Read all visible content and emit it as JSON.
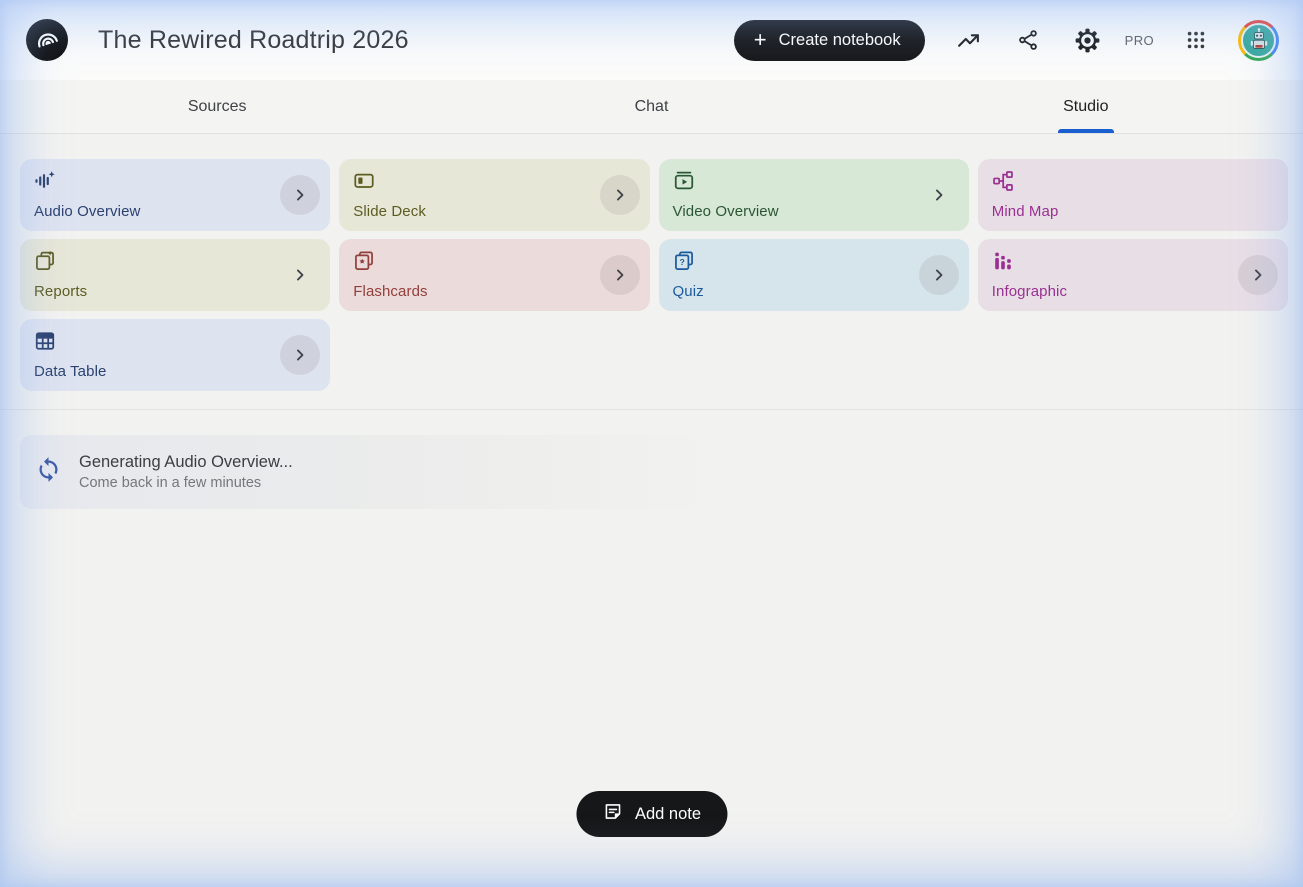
{
  "header": {
    "title": "The Rewired Roadtrip 2026",
    "create_notebook_label": "Create notebook",
    "plan_badge": "PRO",
    "icons": [
      "notebooklm-logo",
      "plus-icon",
      "trending-up-icon",
      "share-icon",
      "settings-gear-icon",
      "apps-grid-icon",
      "user-avatar-robot"
    ]
  },
  "tabs": [
    {
      "label": "Sources",
      "active": false
    },
    {
      "label": "Chat",
      "active": false
    },
    {
      "label": "Studio",
      "active": true
    }
  ],
  "studio": {
    "cards": [
      {
        "label": "Audio Overview",
        "icon": "audio-waveform-sparkle-icon",
        "bg": "#dee3f0",
        "fg": "#2b4170",
        "chevron": "circle"
      },
      {
        "label": "Slide Deck",
        "icon": "slide-deck-icon",
        "bg": "#e7e7d8",
        "fg": "#5d5c22",
        "chevron": "circle"
      },
      {
        "label": "Video Overview",
        "icon": "video-play-icon",
        "bg": "#d7e8d6",
        "fg": "#2b5633",
        "chevron": "plain"
      },
      {
        "label": "Mind Map",
        "icon": "mind-map-icon",
        "bg": "#e8dee6",
        "fg": "#9a3191",
        "chevron": "none"
      },
      {
        "label": "Reports",
        "icon": "report-sparkle-icon",
        "bg": "#e7e7d8",
        "fg": "#5d5c22",
        "chevron": "plain"
      },
      {
        "label": "Flashcards",
        "icon": "flashcards-star-icon",
        "bg": "#ecdbdb",
        "fg": "#92403c",
        "chevron": "circle"
      },
      {
        "label": "Quiz",
        "icon": "quiz-question-icon",
        "bg": "#d6e5ec",
        "fg": "#1c5a9e",
        "chevron": "circle"
      },
      {
        "label": "Infographic",
        "icon": "infographic-bars-icon",
        "bg": "#e8dee6",
        "fg": "#9a3191",
        "chevron": "circle"
      },
      {
        "label": "Data Table",
        "icon": "data-table-icon",
        "bg": "#dee3f0",
        "fg": "#2b4170",
        "chevron": "circle"
      }
    ],
    "generating": {
      "title": "Generating Audio Overview...",
      "subtitle": "Come back in a few minutes",
      "icon": "sync-spinner-icon"
    },
    "add_note_label": "Add note"
  },
  "colors": {
    "accent_blue": "#1a5fd0",
    "button_black": "#17181a",
    "page_bg": "#f2f2f0",
    "edge_glow_blue": "#92b4f0",
    "spinner_blue": "#3c5ba9"
  }
}
